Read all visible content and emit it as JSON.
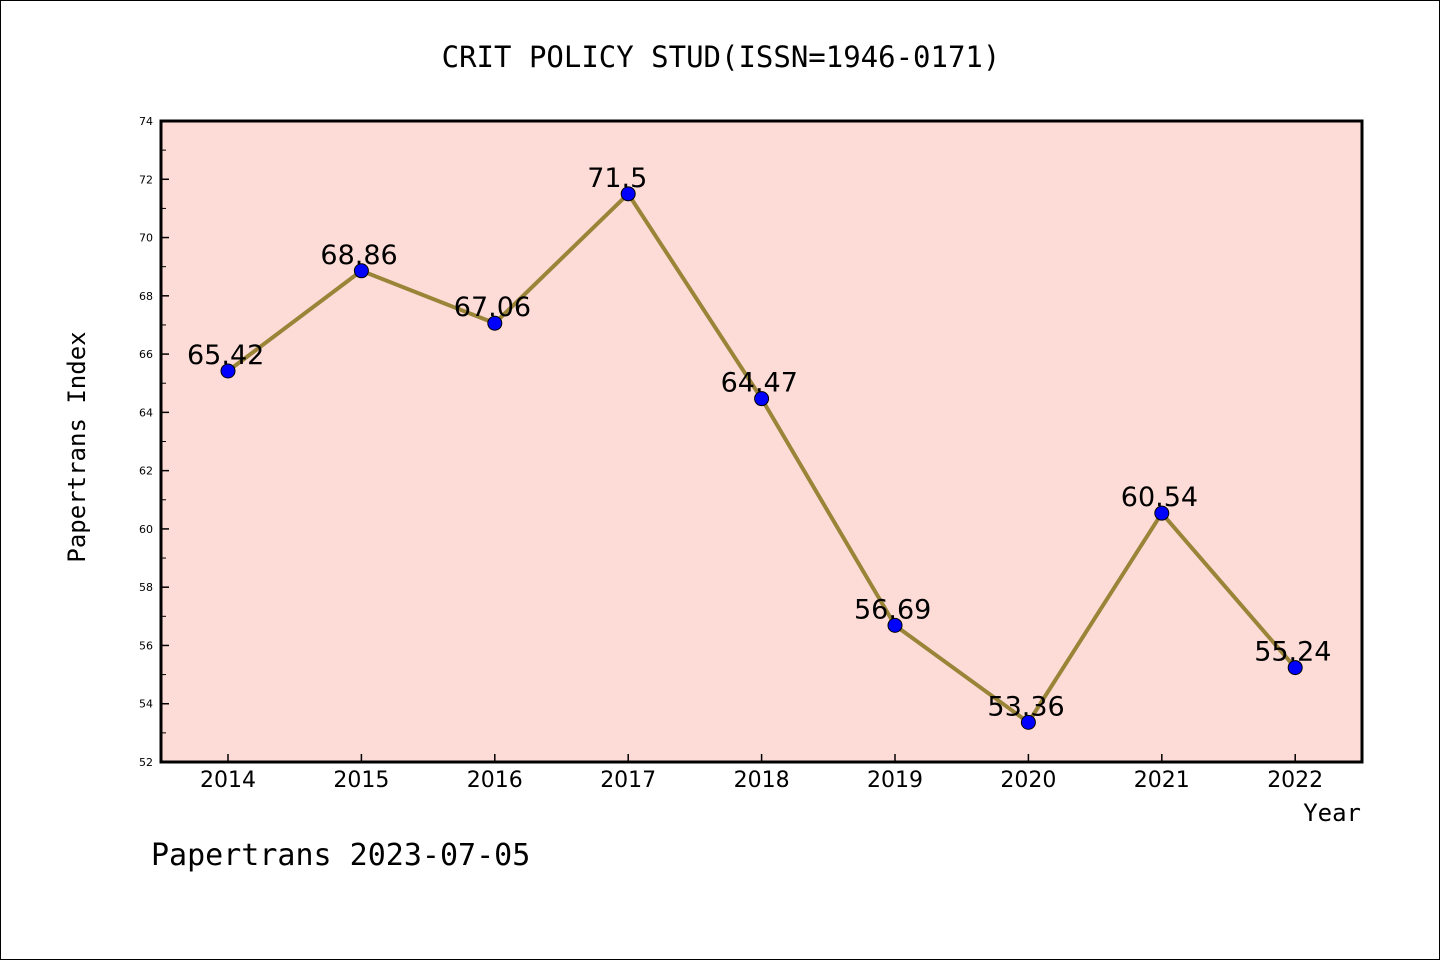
{
  "chart_data": {
    "type": "line",
    "title": "CRIT POLICY STUD(ISSN=1946-0171)",
    "xlabel": "Year",
    "ylabel": "Papertrans Index",
    "categories": [
      "2014",
      "2015",
      "2016",
      "2017",
      "2018",
      "2019",
      "2020",
      "2021",
      "2022"
    ],
    "values": [
      65.42,
      68.86,
      67.06,
      71.5,
      64.47,
      56.69,
      53.36,
      60.54,
      55.24
    ],
    "data_labels": [
      "65.42",
      "68.86",
      "67.06",
      "71.5",
      "64.47",
      "56.69",
      "53.36",
      "60.54",
      "55.24"
    ],
    "ylim": [
      52,
      74
    ],
    "y_ticks": [
      52,
      54,
      56,
      58,
      60,
      62,
      64,
      66,
      68,
      70,
      72,
      74
    ],
    "y_tick_labels": [
      "52",
      "54",
      "56",
      "58",
      "60",
      "62",
      "64",
      "66",
      "68",
      "70",
      "72",
      "74"
    ],
    "grid": false,
    "legend": "none",
    "colors": {
      "plot_background": "#fddcd8",
      "line": "#9a8438",
      "marker": "#0000ff",
      "axes": "#000000"
    }
  },
  "footer": {
    "watermark": "Papertrans 2023-07-05"
  }
}
